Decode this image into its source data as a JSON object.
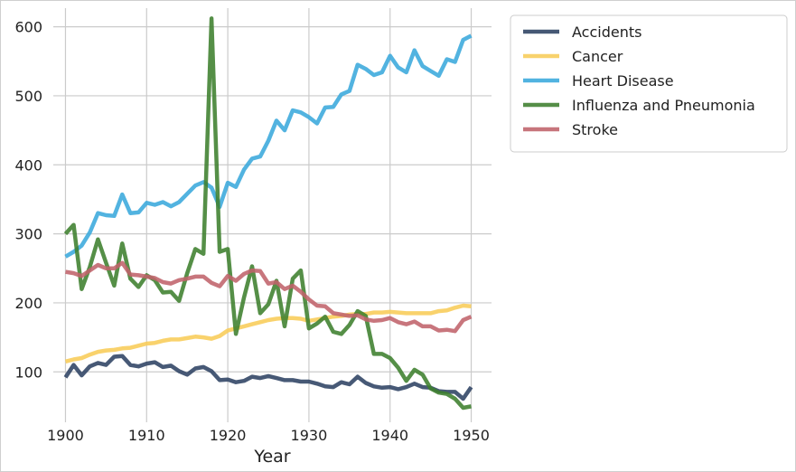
{
  "chart_data": {
    "type": "line",
    "title": "",
    "xlabel": "Year",
    "ylabel": "",
    "xlim": [
      1898.5,
      1952.5
    ],
    "ylim": [
      27,
      627
    ],
    "grid": true,
    "legend_position": "outside-top-right",
    "x": [
      1900,
      1901,
      1902,
      1903,
      1904,
      1905,
      1906,
      1907,
      1908,
      1909,
      1910,
      1911,
      1912,
      1913,
      1914,
      1915,
      1916,
      1917,
      1918,
      1919,
      1920,
      1921,
      1922,
      1923,
      1924,
      1925,
      1926,
      1927,
      1928,
      1929,
      1930,
      1931,
      1932,
      1933,
      1934,
      1935,
      1936,
      1937,
      1938,
      1939,
      1940,
      1941,
      1942,
      1943,
      1944,
      1945,
      1946,
      1947,
      1948,
      1949,
      1950
    ],
    "xticks": [
      "1900",
      "1910",
      "1920",
      "1930",
      "1940",
      "1950"
    ],
    "yticks": [
      "100",
      "200",
      "300",
      "400",
      "500",
      "600"
    ],
    "series": [
      {
        "name": "Accidents",
        "color": "#2d4263",
        "values": [
          92,
          110,
          95,
          108,
          113,
          110,
          122,
          123,
          110,
          108,
          112,
          114,
          107,
          109,
          101,
          96,
          105,
          107,
          101,
          88,
          89,
          85,
          87,
          93,
          91,
          94,
          91,
          88,
          88,
          86,
          86,
          83,
          79,
          78,
          85,
          82,
          93,
          84,
          79,
          77,
          78,
          75,
          78,
          83,
          78,
          77,
          72,
          71,
          71,
          61,
          78
        ]
      },
      {
        "name": "Cancer",
        "color": "#f8cc58",
        "values": [
          115,
          118,
          120,
          125,
          129,
          131,
          132,
          134,
          135,
          138,
          141,
          142,
          145,
          147,
          147,
          149,
          151,
          150,
          148,
          152,
          160,
          163,
          166,
          169,
          172,
          175,
          177,
          178,
          178,
          177,
          174,
          176,
          178,
          180,
          181,
          183,
          184,
          184,
          186,
          186,
          187,
          186,
          185,
          185,
          185,
          185,
          188,
          189,
          193,
          196,
          195
        ]
      },
      {
        "name": "Heart Disease",
        "color": "#3aa9dc",
        "values": [
          267,
          274,
          283,
          302,
          330,
          327,
          326,
          357,
          330,
          331,
          345,
          342,
          346,
          340,
          346,
          358,
          370,
          375,
          367,
          339,
          374,
          368,
          393,
          409,
          412,
          435,
          464,
          450,
          479,
          476,
          469,
          460,
          483,
          484,
          502,
          507,
          545,
          539,
          530,
          534,
          558,
          541,
          534,
          566,
          543,
          536,
          529,
          553,
          549,
          581,
          587
        ]
      },
      {
        "name": "Influenza and Pneumonia",
        "color": "#3e7f2e",
        "values": [
          300,
          313,
          220,
          252,
          292,
          258,
          225,
          286,
          235,
          223,
          240,
          233,
          215,
          216,
          203,
          243,
          278,
          271,
          612,
          274,
          278,
          155,
          208,
          253,
          185,
          198,
          232,
          166,
          235,
          247,
          163,
          170,
          180,
          158,
          155,
          168,
          188,
          181,
          126,
          126,
          120,
          106,
          87,
          103,
          96,
          76,
          70,
          68,
          61,
          48,
          50
        ]
      },
      {
        "name": "Stroke",
        "color": "#c0636b",
        "values": [
          245,
          243,
          239,
          247,
          255,
          250,
          250,
          258,
          241,
          240,
          238,
          236,
          230,
          228,
          233,
          235,
          238,
          238,
          229,
          224,
          239,
          232,
          242,
          247,
          246,
          228,
          230,
          220,
          225,
          216,
          205,
          196,
          195,
          185,
          183,
          181,
          182,
          176,
          174,
          175,
          178,
          172,
          169,
          173,
          166,
          166,
          160,
          161,
          159,
          175,
          180
        ]
      }
    ]
  }
}
